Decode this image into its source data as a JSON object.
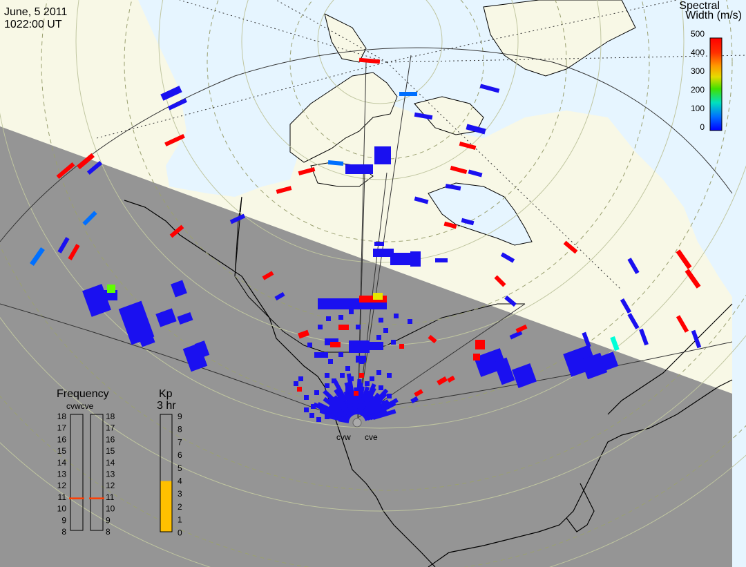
{
  "header": {
    "date": "June, 5 2011",
    "time": "1022:00 UT"
  },
  "colorbar": {
    "title_line1": "Spectral",
    "title_line2": "Width (m/s)",
    "ticks": [
      "500",
      "400",
      "300",
      "200",
      "100",
      "0"
    ],
    "colors": [
      "#ff0000",
      "#ff8c00",
      "#ffd200",
      "#80ff00",
      "#00ffc8",
      "#00a0ff",
      "#0000ff"
    ]
  },
  "frequency_panel": {
    "title": "Frequency",
    "subtitle": "cvwcve",
    "ticks": [
      "18",
      "17",
      "16",
      "15",
      "14",
      "13",
      "12",
      "11",
      "10",
      "9",
      "8"
    ],
    "cvw_value": 10.9,
    "cve_value": 10.9,
    "marker_color": "#ff3c00"
  },
  "kp_panel": {
    "title": "Kp",
    "subtitle": "3 hr",
    "ticks": [
      "9",
      "8",
      "7",
      "6",
      "5",
      "4",
      "3",
      "2",
      "1",
      "0"
    ],
    "value": 4,
    "fill_color": "#ffc000"
  },
  "radars": [
    {
      "name": "cvw"
    },
    {
      "name": "cve"
    }
  ],
  "map": {
    "ocean_color": "#e6f5ff",
    "land_color": "#f8f8e6",
    "night_color": "#959595",
    "coast_color": "#000000"
  }
}
